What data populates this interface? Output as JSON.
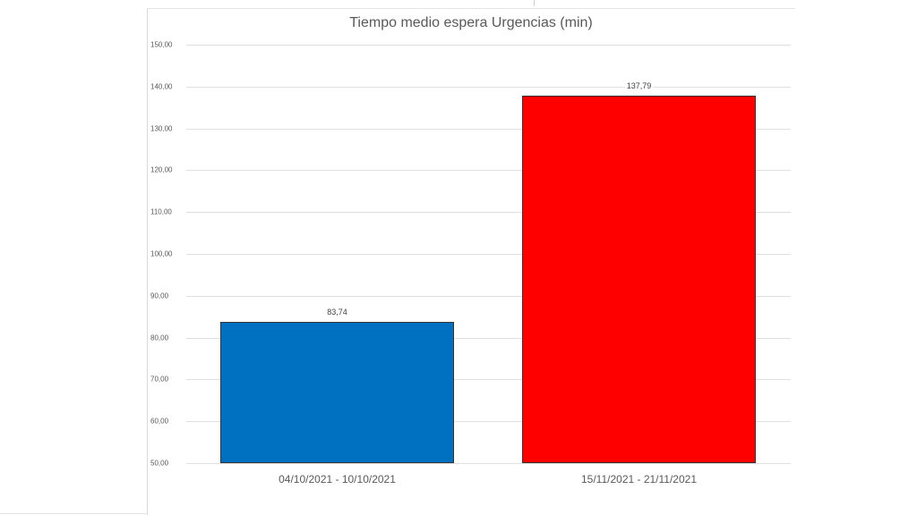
{
  "chart_data": {
    "type": "bar",
    "title": "Tiempo medio espera Urgencias (min)",
    "categories": [
      "04/10/2021 - 10/10/2021",
      "15/11/2021 - 21/11/2021"
    ],
    "values": [
      83.74,
      137.79
    ],
    "value_labels": [
      "83,74",
      "137,79"
    ],
    "bar_colors": [
      "#0070C0",
      "#FF0000"
    ],
    "xlabel": "",
    "ylabel": "",
    "ylim": [
      50,
      150
    ],
    "yticks": [
      50,
      60,
      70,
      80,
      90,
      100,
      110,
      120,
      130,
      140,
      150
    ],
    "ytick_labels": [
      "50,00",
      "60,00",
      "70,00",
      "80,00",
      "90,00",
      "100,00",
      "110,00",
      "120,00",
      "130,00",
      "140,00",
      "150,00"
    ],
    "grid": true,
    "legend": null
  }
}
